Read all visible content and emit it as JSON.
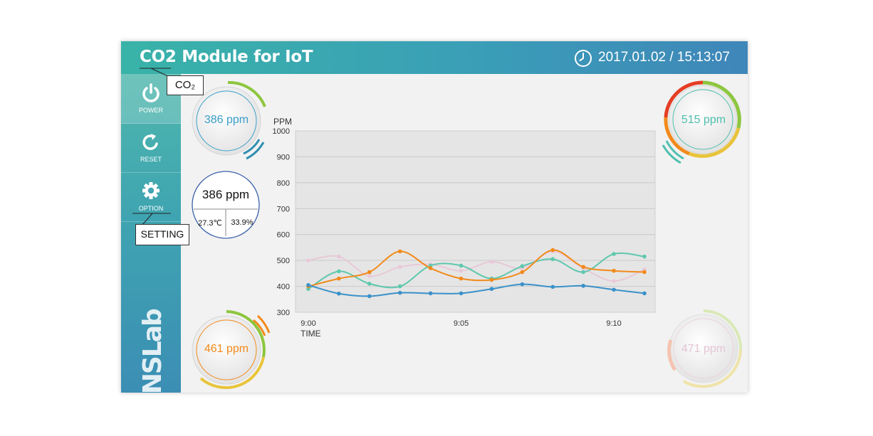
{
  "header": {
    "title": "CO2 Module for IoT",
    "datetime": "2017.01.02  /  15:13:07",
    "clock_icon": "clock-icon"
  },
  "sidebar": {
    "items": [
      {
        "label": "POWER",
        "icon": "power-icon"
      },
      {
        "label": "RESET",
        "icon": "refresh-icon"
      },
      {
        "label": "OPTION",
        "icon": "gear-icon"
      }
    ],
    "brand": "RNSLab"
  },
  "callouts": {
    "co2": "CO₂",
    "setting": "SETTING"
  },
  "sensors": {
    "top_left": {
      "value": "386 ppm",
      "color": "#3a9fc8",
      "level": 0.39
    },
    "top_right": {
      "value": "515 ppm",
      "color": "#4fbfae",
      "level": 0.52
    },
    "bottom_left": {
      "value": "461 ppm",
      "color": "#f28a1b",
      "level": 0.46
    },
    "bottom_right": {
      "value": "471 ppm",
      "color": "#e8c6d6",
      "level": 0.47
    }
  },
  "info": {
    "ppm": "386 ppm",
    "temperature": "27.3℃",
    "humidity": "33.9%"
  },
  "chart_data": {
    "type": "line",
    "ylabel": "PPM",
    "xlabel": "TIME",
    "ylim": [
      300,
      1000
    ],
    "yticks": [
      "1000",
      "900",
      "800",
      "700",
      "600",
      "500",
      "400",
      "300"
    ],
    "xticks": [
      {
        "label": "9:00",
        "x": 0
      },
      {
        "label": "9:05",
        "x": 5
      },
      {
        "label": "9:10",
        "x": 10
      }
    ],
    "x": [
      0,
      1,
      2,
      3,
      4,
      5,
      6,
      7,
      8,
      9,
      10,
      11
    ],
    "grid": true,
    "series": [
      {
        "color": "#e8c9d8",
        "values": [
          500,
          515,
          440,
          475,
          485,
          460,
          495,
          470,
          535,
          470,
          420,
          465
        ]
      },
      {
        "color": "#5ec8ad",
        "values": [
          390,
          458,
          410,
          400,
          480,
          480,
          430,
          478,
          505,
          455,
          525,
          515
        ]
      },
      {
        "color": "#f28a1b",
        "values": [
          400,
          430,
          455,
          535,
          470,
          430,
          425,
          455,
          540,
          475,
          460,
          455
        ]
      },
      {
        "color": "#3a91c9",
        "values": [
          405,
          372,
          362,
          375,
          373,
          373,
          390,
          408,
          398,
          402,
          387,
          373
        ]
      }
    ]
  }
}
